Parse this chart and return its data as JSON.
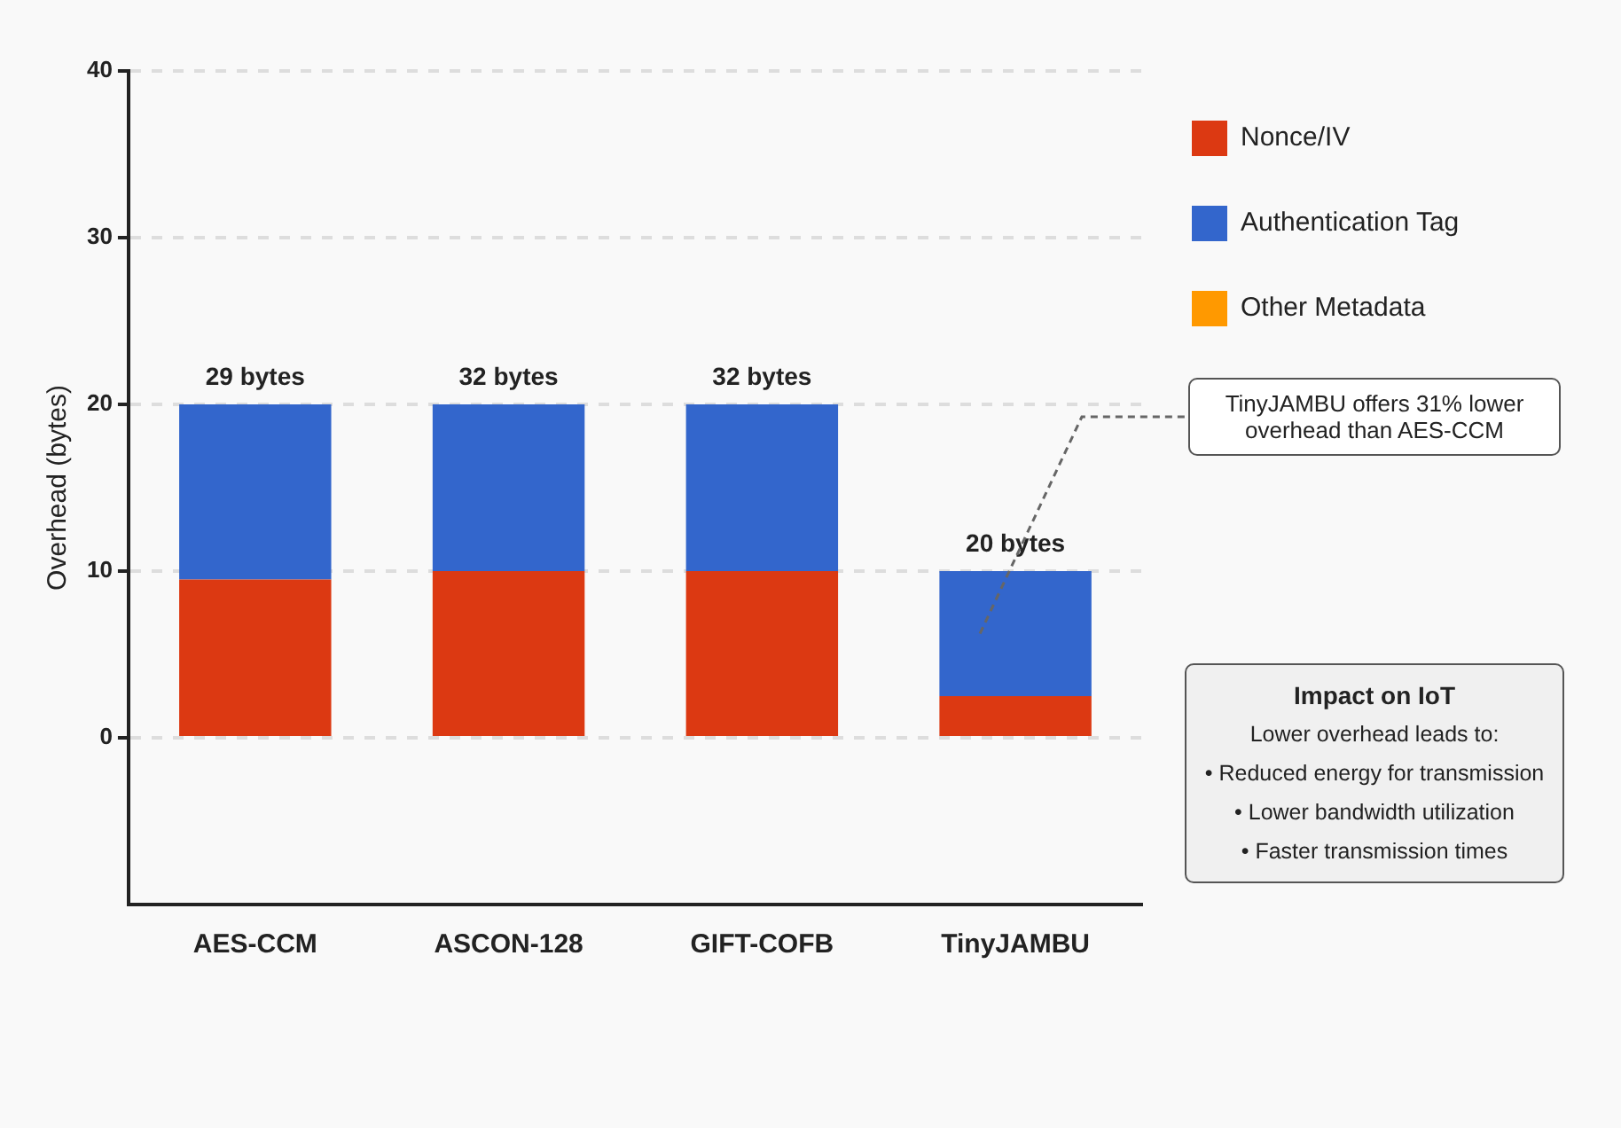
{
  "chart_data": {
    "type": "bar",
    "stacked": true,
    "categories": [
      "AES-CCM",
      "ASCON-128",
      "GIFT-COFB",
      "TinyJAMBU"
    ],
    "series": [
      {
        "name": "Nonce/IV",
        "color": "#dc3912",
        "values": [
          9.5,
          10,
          10,
          2.5
        ]
      },
      {
        "name": "Authentication Tag",
        "color": "#3366cc",
        "values": [
          10.5,
          10,
          10,
          7.5
        ]
      },
      {
        "name": "Other Metadata",
        "color": "#ff9900",
        "values": [
          0,
          0,
          0,
          0
        ]
      }
    ],
    "ylabel": "Overhead (bytes)",
    "ylim": [
      -10,
      40
    ],
    "yticks": [
      0,
      10,
      20,
      30,
      40
    ],
    "grid": "y",
    "legend": "top right",
    "annotations": [
      {
        "text": "29 bytes",
        "x": "AES-CCM",
        "y": 20
      },
      {
        "text": "32 bytes",
        "x": "ASCON-128",
        "y": 20
      },
      {
        "text": "32 bytes",
        "x": "GIFT-COFB",
        "y": 20
      },
      {
        "text": "20 bytes",
        "x": "TinyJAMBU",
        "y": 10
      },
      "TinyJAMBU offers 31% lower overhead than AES-CCM",
      "Impact on IoT",
      "Lower overhead leads to:",
      "• Reduced energy for transmission",
      "• Lower bandwidth utilization",
      "• Faster transmission times"
    ]
  }
}
